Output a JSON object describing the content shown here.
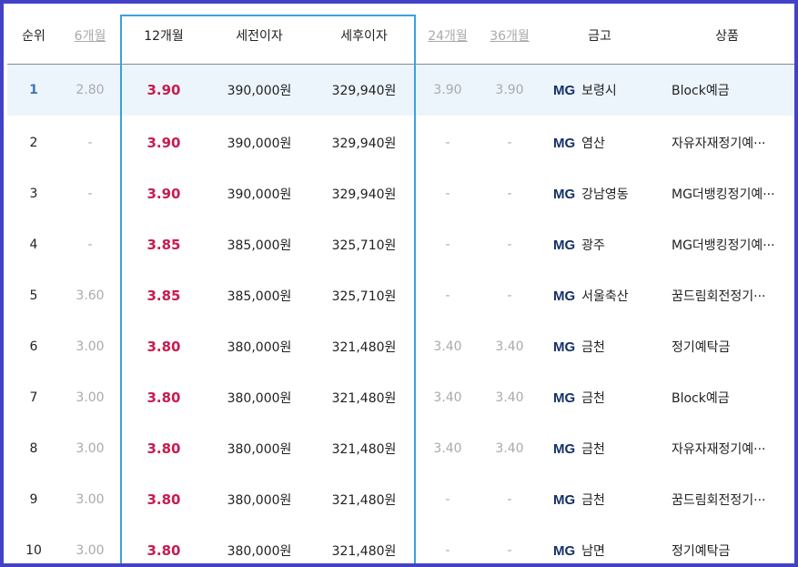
{
  "headers": {
    "rank": "순위",
    "m6": "6개월",
    "m12": "12개월",
    "pre_tax": "세전이자",
    "post_tax": "세후이자",
    "m24": "24개월",
    "m36": "36개월",
    "bank": "금고",
    "product": "상품"
  },
  "bank_prefix": "MG",
  "colors": {
    "frame": "#4242c8",
    "highlight_column_border": "#3aa0e0",
    "rate_text": "#c81c4f",
    "highlight_row": "#edf5fc",
    "mg_text": "#14306b"
  },
  "rows": [
    {
      "rank": "1",
      "m6": "2.80",
      "m12": "3.90",
      "pre_tax": "390,000원",
      "post_tax": "329,940원",
      "m24": "3.90",
      "m36": "3.90",
      "bank": "보령시",
      "product": "Block예금"
    },
    {
      "rank": "2",
      "m6": "-",
      "m12": "3.90",
      "pre_tax": "390,000원",
      "post_tax": "329,940원",
      "m24": "-",
      "m36": "-",
      "bank": "염산",
      "product": "자유자재정기예···"
    },
    {
      "rank": "3",
      "m6": "-",
      "m12": "3.90",
      "pre_tax": "390,000원",
      "post_tax": "329,940원",
      "m24": "-",
      "m36": "-",
      "bank": "강남영동",
      "product": "MG더뱅킹정기예···"
    },
    {
      "rank": "4",
      "m6": "-",
      "m12": "3.85",
      "pre_tax": "385,000원",
      "post_tax": "325,710원",
      "m24": "-",
      "m36": "-",
      "bank": "광주",
      "product": "MG더뱅킹정기예···"
    },
    {
      "rank": "5",
      "m6": "3.60",
      "m12": "3.85",
      "pre_tax": "385,000원",
      "post_tax": "325,710원",
      "m24": "-",
      "m36": "-",
      "bank": "서울축산",
      "product": "꿈드림회전정기···"
    },
    {
      "rank": "6",
      "m6": "3.00",
      "m12": "3.80",
      "pre_tax": "380,000원",
      "post_tax": "321,480원",
      "m24": "3.40",
      "m36": "3.40",
      "bank": "금천",
      "product": "정기예탁금"
    },
    {
      "rank": "7",
      "m6": "3.00",
      "m12": "3.80",
      "pre_tax": "380,000원",
      "post_tax": "321,480원",
      "m24": "3.40",
      "m36": "3.40",
      "bank": "금천",
      "product": "Block예금"
    },
    {
      "rank": "8",
      "m6": "3.00",
      "m12": "3.80",
      "pre_tax": "380,000원",
      "post_tax": "321,480원",
      "m24": "3.40",
      "m36": "3.40",
      "bank": "금천",
      "product": "자유자재정기예···"
    },
    {
      "rank": "9",
      "m6": "3.00",
      "m12": "3.80",
      "pre_tax": "380,000원",
      "post_tax": "321,480원",
      "m24": "-",
      "m36": "-",
      "bank": "금천",
      "product": "꿈드림회전정기···"
    },
    {
      "rank": "10",
      "m6": "3.00",
      "m12": "3.80",
      "pre_tax": "380,000원",
      "post_tax": "321,480원",
      "m24": "-",
      "m36": "-",
      "bank": "남면",
      "product": "정기예탁금"
    }
  ]
}
